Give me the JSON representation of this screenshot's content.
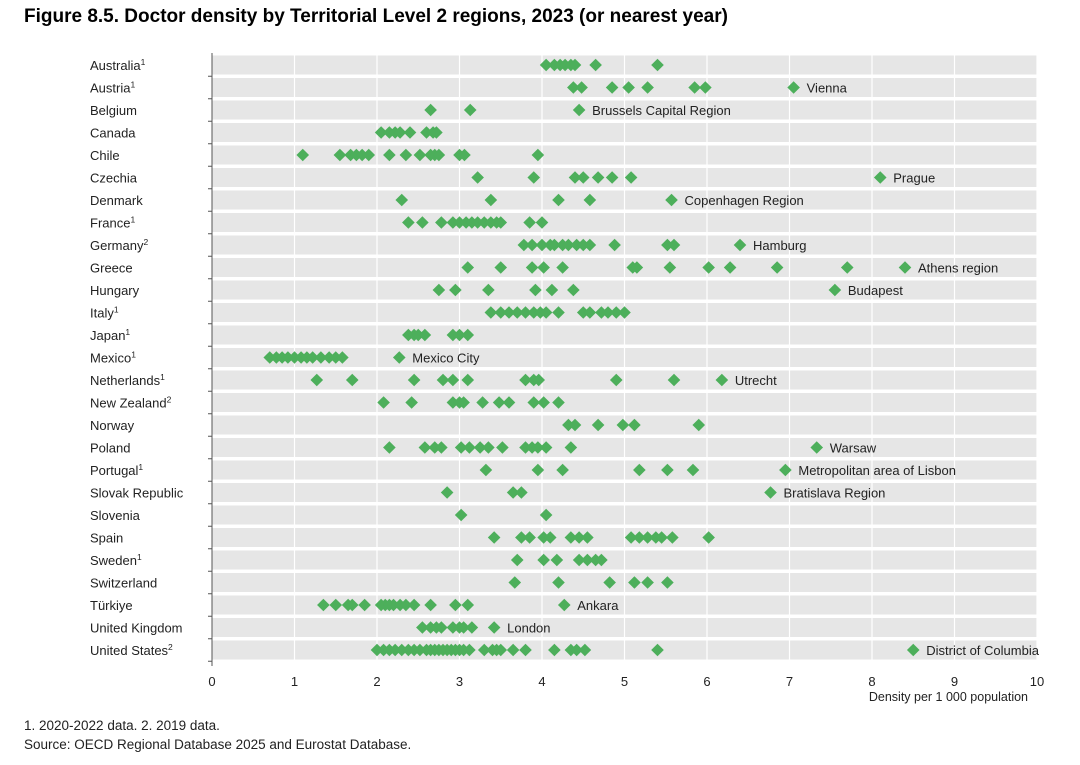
{
  "title": "Figure 8.5. Doctor density by Territorial Level 2 regions, 2023 (or nearest year)",
  "notes": [
    "1. 2020-2022 data. 2. 2019 data.",
    "Source: OECD Regional Database 2025 and Eurostat Database."
  ],
  "colors": {
    "marker": "#4daf5b",
    "band": "#e6e6e6",
    "axis": "#555555"
  },
  "chart_data": {
    "type": "scatter",
    "marker": "diamond",
    "xlabel": "Density per 1 000 population",
    "xlim": [
      0,
      10
    ],
    "xticks": [
      0,
      1,
      2,
      3,
      4,
      5,
      6,
      7,
      8,
      9,
      10
    ],
    "categories": [
      {
        "label": "Australia",
        "sup": "1",
        "values": [
          4.05,
          4.15,
          4.22,
          4.28,
          4.35,
          4.4,
          4.65,
          5.4
        ],
        "annotation": ""
      },
      {
        "label": "Austria",
        "sup": "1",
        "values": [
          4.38,
          4.48,
          4.85,
          5.05,
          5.28,
          5.85,
          5.98,
          7.05
        ],
        "annotation": "Vienna"
      },
      {
        "label": "Belgium",
        "sup": "",
        "values": [
          2.65,
          3.13,
          4.45
        ],
        "annotation": "Brussels Capital Region"
      },
      {
        "label": "Canada",
        "sup": "",
        "values": [
          2.05,
          2.15,
          2.22,
          2.28,
          2.4,
          2.6,
          2.68,
          2.72
        ],
        "annotation": ""
      },
      {
        "label": "Chile",
        "sup": "",
        "values": [
          1.1,
          1.55,
          1.68,
          1.75,
          1.82,
          1.9,
          2.15,
          2.35,
          2.52,
          2.65,
          2.7,
          2.75,
          3.0,
          3.06,
          3.95
        ],
        "annotation": ""
      },
      {
        "label": "Czechia",
        "sup": "",
        "values": [
          3.22,
          3.9,
          4.4,
          4.5,
          4.68,
          4.85,
          5.08,
          8.1
        ],
        "annotation": "Prague"
      },
      {
        "label": "Denmark",
        "sup": "",
        "values": [
          2.3,
          3.38,
          4.2,
          4.58,
          5.57
        ],
        "annotation": "Copenhagen Region"
      },
      {
        "label": "France",
        "sup": "1",
        "values": [
          2.38,
          2.55,
          2.78,
          2.92,
          3.0,
          3.08,
          3.15,
          3.22,
          3.3,
          3.38,
          3.45,
          3.5,
          3.85,
          4.0
        ],
        "annotation": ""
      },
      {
        "label": "Germany",
        "sup": "2",
        "values": [
          3.78,
          3.88,
          4.0,
          4.1,
          4.15,
          4.25,
          4.32,
          4.42,
          4.5,
          4.58,
          4.88,
          5.52,
          5.6,
          6.4
        ],
        "annotation": "Hamburg"
      },
      {
        "label": "Greece",
        "sup": "",
        "values": [
          3.1,
          3.5,
          3.88,
          4.02,
          4.25,
          5.1,
          5.15,
          5.55,
          6.02,
          6.28,
          6.85,
          7.7,
          8.4
        ],
        "annotation": "Athens region"
      },
      {
        "label": "Hungary",
        "sup": "",
        "values": [
          2.75,
          2.95,
          3.35,
          3.92,
          4.12,
          4.38,
          7.55
        ],
        "annotation": "Budapest"
      },
      {
        "label": "Italy",
        "sup": "1",
        "values": [
          3.38,
          3.5,
          3.6,
          3.7,
          3.8,
          3.9,
          3.98,
          4.05,
          4.2,
          4.5,
          4.58,
          4.72,
          4.8,
          4.9,
          5.0
        ],
        "annotation": ""
      },
      {
        "label": "Japan",
        "sup": "1",
        "values": [
          2.38,
          2.45,
          2.5,
          2.58,
          2.92,
          3.0,
          3.1
        ],
        "annotation": ""
      },
      {
        "label": "Mexico",
        "sup": "1",
        "values": [
          0.7,
          0.78,
          0.85,
          0.92,
          1.0,
          1.08,
          1.15,
          1.22,
          1.32,
          1.42,
          1.5,
          1.58,
          2.27
        ],
        "annotation": "Mexico City"
      },
      {
        "label": "Netherlands",
        "sup": "1",
        "values": [
          1.27,
          1.7,
          2.45,
          2.8,
          2.92,
          3.1,
          3.8,
          3.9,
          3.96,
          4.9,
          5.6,
          6.18
        ],
        "annotation": "Utrecht"
      },
      {
        "label": "New Zealand",
        "sup": "2",
        "values": [
          2.08,
          2.42,
          2.92,
          3.0,
          3.05,
          3.28,
          3.48,
          3.6,
          3.9,
          4.02,
          4.2
        ],
        "annotation": ""
      },
      {
        "label": "Norway",
        "sup": "",
        "values": [
          4.32,
          4.4,
          4.68,
          4.98,
          5.12,
          5.9
        ],
        "annotation": ""
      },
      {
        "label": "Poland",
        "sup": "",
        "values": [
          2.15,
          2.58,
          2.7,
          2.78,
          3.02,
          3.12,
          3.25,
          3.35,
          3.52,
          3.8,
          3.88,
          3.95,
          4.05,
          4.35,
          7.33
        ],
        "annotation": "Warsaw"
      },
      {
        "label": "Portugal",
        "sup": "1",
        "values": [
          3.32,
          3.95,
          4.25,
          5.18,
          5.52,
          5.83,
          6.95
        ],
        "annotation": "Metropolitan area of Lisbon"
      },
      {
        "label": "Slovak Republic",
        "sup": "",
        "values": [
          2.85,
          3.65,
          3.75,
          6.77
        ],
        "annotation": "Bratislava Region"
      },
      {
        "label": "Slovenia",
        "sup": "",
        "values": [
          3.02,
          4.05
        ],
        "annotation": ""
      },
      {
        "label": "Spain",
        "sup": "",
        "values": [
          3.42,
          3.75,
          3.85,
          4.02,
          4.1,
          4.35,
          4.45,
          4.55,
          5.08,
          5.18,
          5.28,
          5.38,
          5.45,
          5.58,
          6.02
        ],
        "annotation": ""
      },
      {
        "label": "Sweden",
        "sup": "1",
        "values": [
          3.7,
          4.02,
          4.18,
          4.45,
          4.55,
          4.65,
          4.72
        ],
        "annotation": ""
      },
      {
        "label": "Switzerland",
        "sup": "",
        "values": [
          3.67,
          4.2,
          4.82,
          5.12,
          5.28,
          5.52
        ],
        "annotation": ""
      },
      {
        "label": "Türkiye",
        "sup": "",
        "values": [
          1.35,
          1.5,
          1.65,
          1.7,
          1.85,
          2.05,
          2.1,
          2.15,
          2.2,
          2.28,
          2.35,
          2.45,
          2.65,
          2.95,
          3.1,
          4.27
        ],
        "annotation": "Ankara"
      },
      {
        "label": "United Kingdom",
        "sup": "",
        "values": [
          2.55,
          2.65,
          2.72,
          2.78,
          2.92,
          3.0,
          3.05,
          3.15,
          3.42
        ],
        "annotation": "London"
      },
      {
        "label": "United States",
        "sup": "2",
        "values": [
          2.0,
          2.08,
          2.15,
          2.22,
          2.3,
          2.38,
          2.45,
          2.52,
          2.6,
          2.65,
          2.7,
          2.75,
          2.8,
          2.85,
          2.9,
          2.95,
          3.0,
          3.05,
          3.12,
          3.3,
          3.4,
          3.45,
          3.5,
          3.65,
          3.8,
          4.15,
          4.35,
          4.42,
          4.52,
          5.4,
          8.5
        ],
        "annotation": "District of Columbia"
      }
    ]
  }
}
